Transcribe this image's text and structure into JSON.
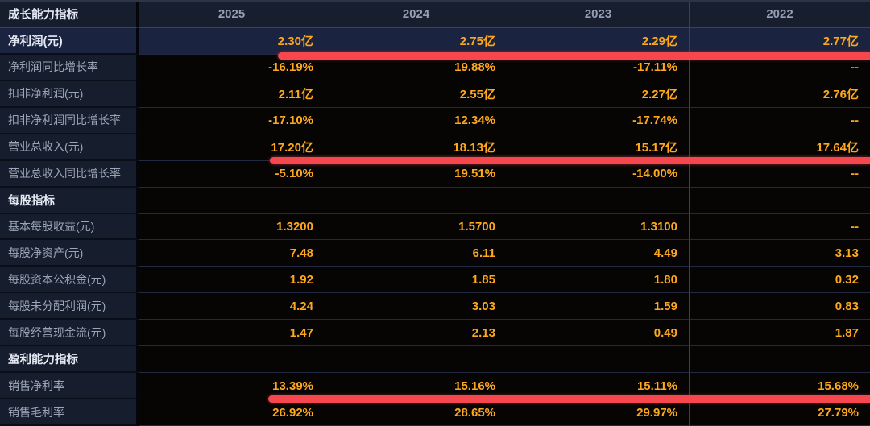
{
  "table": {
    "header": {
      "label": "成长能力指标",
      "years": [
        "2025",
        "2024",
        "2023",
        "2022"
      ]
    },
    "sections": [
      "成长能力指标",
      "每股指标",
      "盈利能力指标"
    ],
    "rows": [
      {
        "label": "净利润(元)",
        "values": [
          "2.30亿",
          "2.75亿",
          "2.29亿",
          "2.77亿"
        ],
        "highlighted": true,
        "red_underline": true
      },
      {
        "label": "净利润同比增长率",
        "values": [
          "-16.19%",
          "19.88%",
          "-17.11%",
          "--"
        ]
      },
      {
        "label": "扣非净利润(元)",
        "values": [
          "2.11亿",
          "2.55亿",
          "2.27亿",
          "2.76亿"
        ]
      },
      {
        "label": "扣非净利润同比增长率",
        "values": [
          "-17.10%",
          "12.34%",
          "-17.74%",
          "--"
        ]
      },
      {
        "label": "营业总收入(元)",
        "values": [
          "17.20亿",
          "18.13亿",
          "15.17亿",
          "17.64亿"
        ],
        "red_underline": true
      },
      {
        "label": "营业总收入同比增长率",
        "values": [
          "-5.10%",
          "19.51%",
          "-14.00%",
          "--"
        ]
      },
      {
        "label": "每股指标",
        "values": [
          "",
          "",
          "",
          ""
        ],
        "section": true
      },
      {
        "label": "基本每股收益(元)",
        "values": [
          "1.3200",
          "1.5700",
          "1.3100",
          "--"
        ]
      },
      {
        "label": "每股净资产(元)",
        "values": [
          "7.48",
          "6.11",
          "4.49",
          "3.13"
        ]
      },
      {
        "label": "每股资本公积金(元)",
        "values": [
          "1.92",
          "1.85",
          "1.80",
          "0.32"
        ]
      },
      {
        "label": "每股未分配利润(元)",
        "values": [
          "4.24",
          "3.03",
          "1.59",
          "0.83"
        ]
      },
      {
        "label": "每股经营现金流(元)",
        "values": [
          "1.47",
          "2.13",
          "0.49",
          "1.87"
        ]
      },
      {
        "label": "盈利能力指标",
        "values": [
          "",
          "",
          "",
          ""
        ],
        "section": true
      },
      {
        "label": "销售净利率",
        "values": [
          "13.39%",
          "15.16%",
          "15.11%",
          "15.68%"
        ],
        "red_underline": true
      },
      {
        "label": "销售毛利率",
        "values": [
          "26.92%",
          "28.65%",
          "29.97%",
          "27.79%"
        ]
      }
    ]
  },
  "colors": {
    "value_orange": "#ffa81c",
    "annotation_red": "#f7474e",
    "row_highlight_bg": "#1a2340",
    "label_cell_bg": "#161d2c",
    "data_cell_bg": "#060504"
  }
}
